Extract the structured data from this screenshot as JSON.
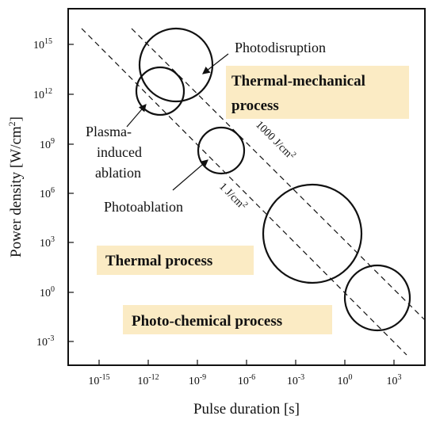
{
  "axes": {
    "xlabel": "Pulse duration [s]",
    "ylabel": "Power density [W/cm",
    "ylabel_sup": "2",
    "ylabel_close": "]",
    "xticks": [
      {
        "base": "10",
        "exp": "-15"
      },
      {
        "base": "10",
        "exp": "-12"
      },
      {
        "base": "10",
        "exp": "-9"
      },
      {
        "base": "10",
        "exp": "-6"
      },
      {
        "base": "10",
        "exp": "-3"
      },
      {
        "base": "10",
        "exp": "0"
      },
      {
        "base": "10",
        "exp": "3"
      }
    ],
    "yticks": [
      {
        "base": "10",
        "exp": "15"
      },
      {
        "base": "10",
        "exp": "12"
      },
      {
        "base": "10",
        "exp": "9"
      },
      {
        "base": "10",
        "exp": "6"
      },
      {
        "base": "10",
        "exp": "3"
      },
      {
        "base": "10",
        "exp": "0"
      },
      {
        "base": "10",
        "exp": "-3"
      }
    ]
  },
  "lines": [
    {
      "label": "1000 J/cm",
      "sup": "2"
    },
    {
      "label": "1 J/cm",
      "sup": "2"
    }
  ],
  "regions": {
    "thermal_mechanical_line1": "Thermal-mechanical",
    "thermal_mechanical_line2": "process",
    "thermal": "Thermal process",
    "photo_chemical": "Photo-chemical process"
  },
  "labels": {
    "photodisruption": "Photodisruption",
    "plasma_line1": "Plasma-",
    "plasma_line2": "induced",
    "plasma_line3": "ablation",
    "photoablation": "Photoablation"
  },
  "colors": {
    "region_fill": "#fbebc4",
    "ink": "#111111"
  }
}
